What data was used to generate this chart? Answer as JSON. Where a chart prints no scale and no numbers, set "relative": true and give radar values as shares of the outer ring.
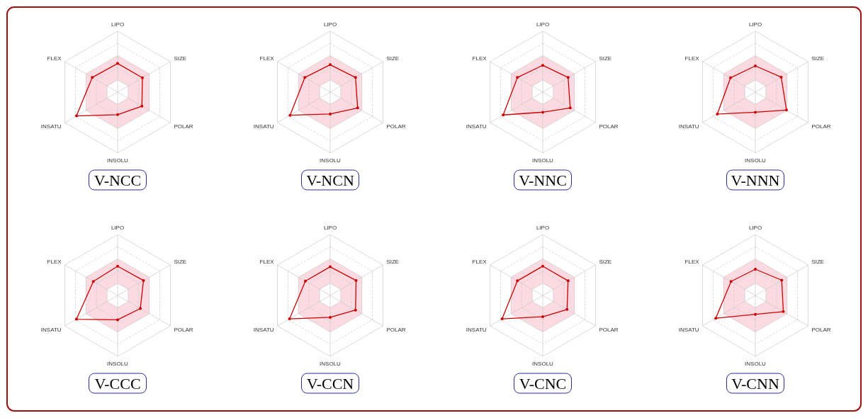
{
  "chart_data": [
    {
      "type": "radar",
      "title": "V-NCC",
      "relative": true,
      "grid": true,
      "marker": "circle",
      "categories": [
        "LIPO",
        "SIZE",
        "POLAR",
        "INSOLU",
        "INSATU",
        "FLEX"
      ],
      "series": [
        {
          "color": "#cc0000",
          "values": [
            0.47,
            0.47,
            0.46,
            0.37,
            0.78,
            0.48
          ]
        }
      ]
    },
    {
      "type": "radar",
      "title": "V-NCN",
      "relative": true,
      "grid": true,
      "marker": "circle",
      "categories": [
        "LIPO",
        "SIZE",
        "POLAR",
        "INSOLU",
        "INSATU",
        "FLEX"
      ],
      "series": [
        {
          "color": "#cc0000",
          "values": [
            0.45,
            0.48,
            0.52,
            0.36,
            0.76,
            0.48
          ]
        }
      ]
    },
    {
      "type": "radar",
      "title": "V-NNC",
      "relative": true,
      "grid": true,
      "marker": "circle",
      "categories": [
        "LIPO",
        "SIZE",
        "POLAR",
        "INSOLU",
        "INSATU",
        "FLEX"
      ],
      "series": [
        {
          "color": "#cc0000",
          "values": [
            0.44,
            0.48,
            0.52,
            0.33,
            0.75,
            0.48
          ]
        }
      ]
    },
    {
      "type": "radar",
      "title": "V-NNN",
      "relative": true,
      "grid": true,
      "marker": "circle",
      "categories": [
        "LIPO",
        "SIZE",
        "POLAR",
        "INSOLU",
        "INSATU",
        "FLEX"
      ],
      "series": [
        {
          "color": "#cc0000",
          "values": [
            0.43,
            0.49,
            0.59,
            0.33,
            0.72,
            0.47
          ]
        }
      ]
    },
    {
      "type": "radar",
      "title": "V-CCC",
      "relative": true,
      "grid": true,
      "marker": "circle",
      "categories": [
        "LIPO",
        "SIZE",
        "POLAR",
        "INSOLU",
        "INSATU",
        "FLEX"
      ],
      "series": [
        {
          "color": "#cc0000",
          "values": [
            0.48,
            0.49,
            0.43,
            0.4,
            0.78,
            0.46
          ]
        }
      ]
    },
    {
      "type": "radar",
      "title": "V-CCN",
      "relative": true,
      "grid": true,
      "marker": "circle",
      "categories": [
        "LIPO",
        "SIZE",
        "POLAR",
        "INSOLU",
        "INSATU",
        "FLEX"
      ],
      "series": [
        {
          "color": "#cc0000",
          "values": [
            0.47,
            0.49,
            0.48,
            0.36,
            0.77,
            0.47
          ]
        }
      ]
    },
    {
      "type": "radar",
      "title": "V-CNC",
      "relative": true,
      "grid": true,
      "marker": "circle",
      "categories": [
        "LIPO",
        "SIZE",
        "POLAR",
        "INSOLU",
        "INSATU",
        "FLEX"
      ],
      "series": [
        {
          "color": "#cc0000",
          "values": [
            0.48,
            0.48,
            0.46,
            0.35,
            0.77,
            0.48
          ]
        }
      ]
    },
    {
      "type": "radar",
      "title": "V-CNN",
      "relative": true,
      "grid": true,
      "marker": "circle",
      "categories": [
        "LIPO",
        "SIZE",
        "POLAR",
        "INSOLU",
        "INSATU",
        "FLEX"
      ],
      "series": [
        {
          "color": "#cc0000",
          "values": [
            0.43,
            0.5,
            0.53,
            0.31,
            0.75,
            0.46
          ]
        }
      ]
    }
  ]
}
